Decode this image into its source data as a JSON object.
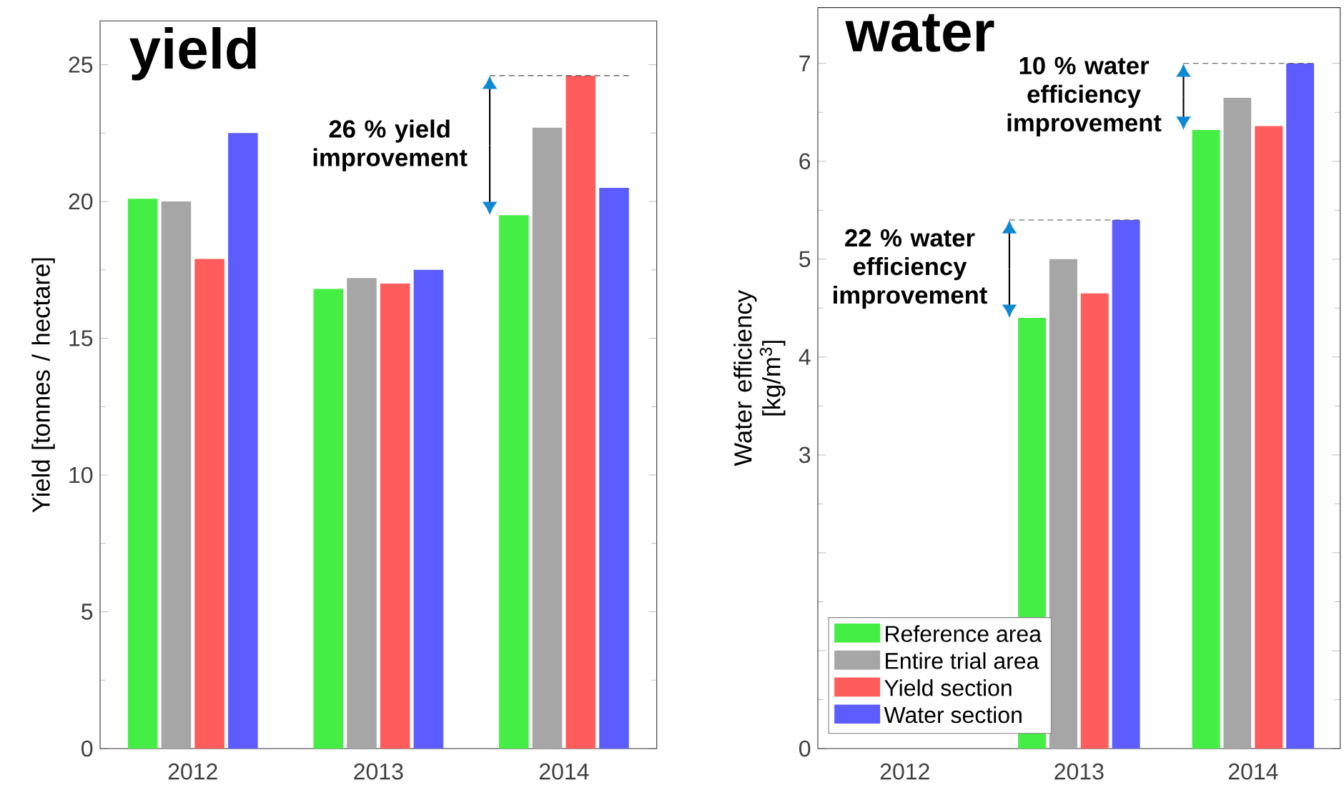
{
  "chart_data": [
    {
      "type": "bar",
      "title": "yield",
      "ylabel": "Yield [tonnes / hectare]",
      "categories": [
        "2012",
        "2013",
        "2014"
      ],
      "series": [
        {
          "color": "#44ee44",
          "values": [
            20.1,
            16.8,
            19.5
          ]
        },
        {
          "color": "#a6a6a6",
          "values": [
            20.0,
            17.2,
            22.7
          ]
        },
        {
          "color": "#ff5c5c",
          "values": [
            17.9,
            17.0,
            24.6
          ]
        },
        {
          "color": "#5c5cff",
          "values": [
            22.5,
            17.5,
            20.5
          ]
        }
      ],
      "ylim": [
        0,
        26.6
      ],
      "yticks": [
        0,
        5,
        10,
        15,
        20,
        25
      ],
      "annotations": [
        "26 % yield improvement"
      ],
      "legend": false
    },
    {
      "type": "bar",
      "title": "water",
      "ylabel": "Water efficiency [kg/m$^{3}$]",
      "categories": [
        "2012",
        "2013",
        "2014"
      ],
      "series": [
        {
          "name": "Reference area",
          "color": "#44ee44",
          "values": [
            null,
            4.4,
            6.32
          ]
        },
        {
          "name": "Entire trial area",
          "color": "#a6a6a6",
          "values": [
            null,
            5.0,
            6.65
          ]
        },
        {
          "name": "Yield section",
          "color": "#ff5c5c",
          "values": [
            null,
            4.65,
            6.36
          ]
        },
        {
          "name": "Water section",
          "color": "#5c5cff",
          "values": [
            null,
            5.4,
            7.0
          ]
        }
      ],
      "ylim": [
        0,
        7.57
      ],
      "yticks": [
        0,
        {
          "value": 1,
          "label": null
        },
        {
          "value": 2,
          "label": null
        },
        3,
        4,
        5,
        6,
        7
      ],
      "annotations": [
        "22 % water efficiency improvement",
        "10 % water efficiency improvement"
      ],
      "legend": "bottom left"
    }
  ]
}
